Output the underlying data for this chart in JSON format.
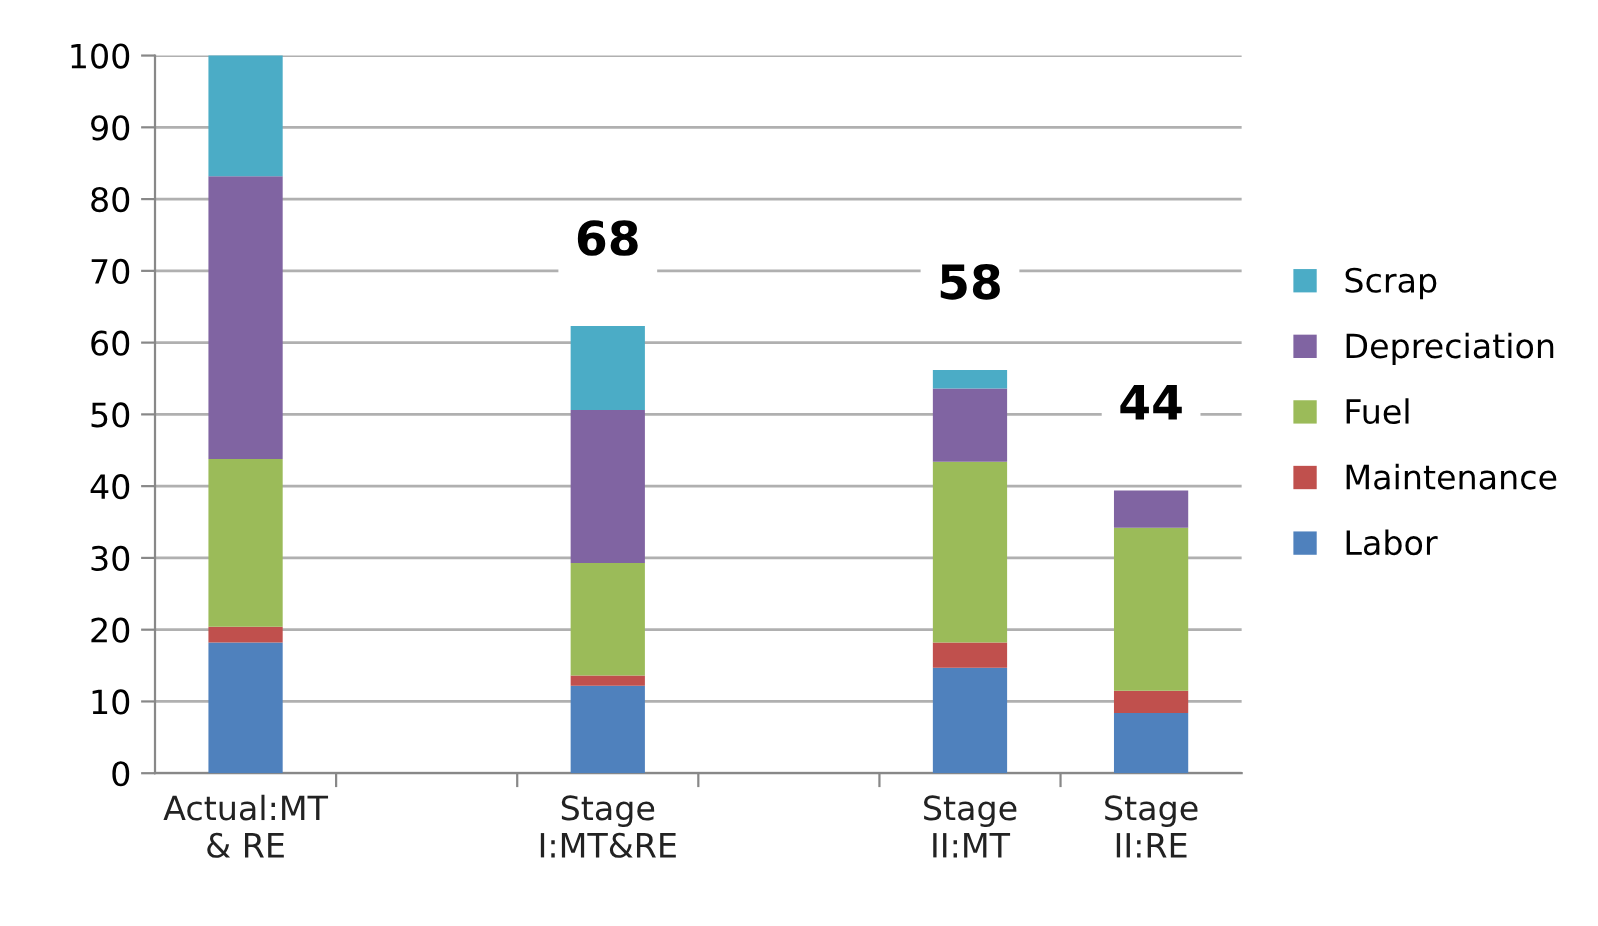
{
  "chart_data": {
    "type": "bar",
    "stacked": true,
    "categories": [
      "Actual:MT\n& RE",
      null,
      "Stage\nI:MT&RE",
      null,
      "Stage\nII:MT",
      "Stage\nII:RE"
    ],
    "series": [
      {
        "name": "Labor",
        "color": "#4f81bd",
        "values": [
          18.2,
          null,
          12.2,
          null,
          14.7,
          8.4
        ]
      },
      {
        "name": "Maintenance",
        "color": "#c0504d",
        "values": [
          2.2,
          null,
          1.4,
          null,
          3.5,
          3.1
        ]
      },
      {
        "name": "Fuel",
        "color": "#9bbb59",
        "values": [
          23.4,
          null,
          15.7,
          null,
          25.2,
          22.7
        ]
      },
      {
        "name": "Depreciation",
        "color": "#8064a2",
        "values": [
          39.4,
          null,
          21.3,
          null,
          10.2,
          5.2
        ]
      },
      {
        "name": "Scrap",
        "color": "#4bacc6",
        "values": [
          17.0,
          null,
          11.7,
          null,
          2.6,
          null
        ]
      }
    ],
    "ylim": [
      0,
      100
    ],
    "yticks": [
      0,
      10,
      20,
      30,
      40,
      50,
      60,
      70,
      80,
      90,
      100
    ],
    "grid": "y",
    "legend": "right",
    "annotations": [
      "68",
      "58",
      "44"
    ]
  }
}
